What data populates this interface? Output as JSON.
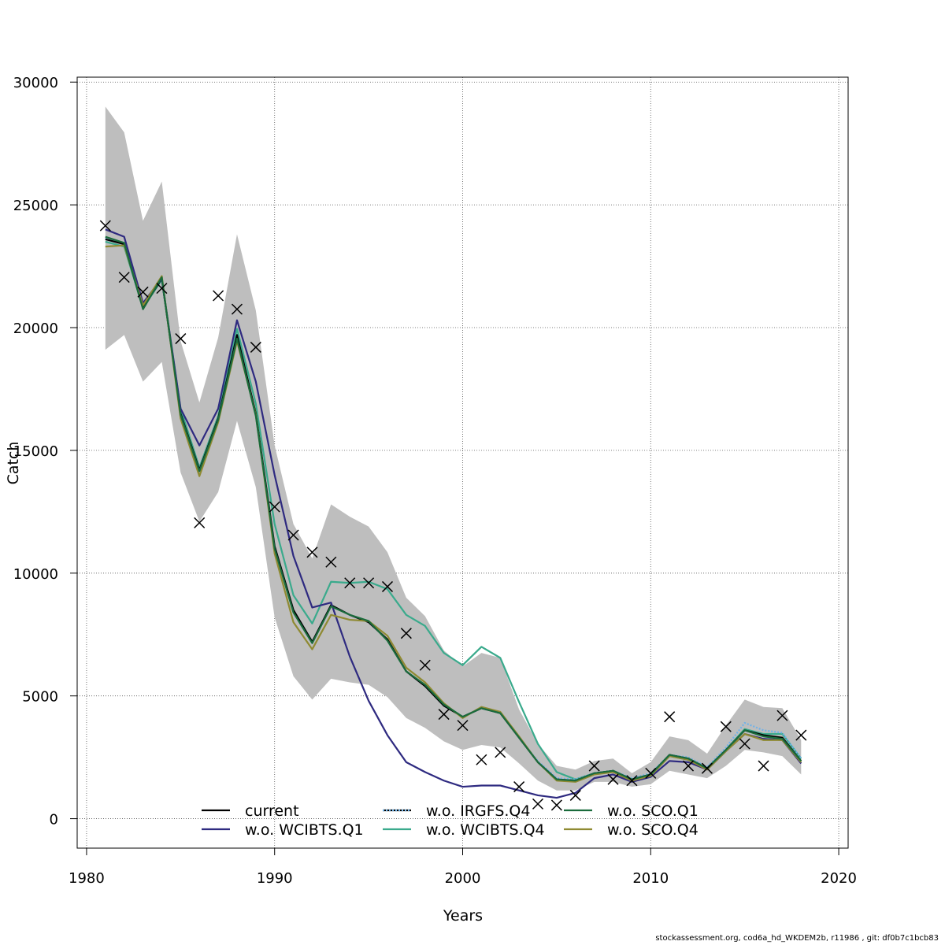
{
  "chart_data": {
    "type": "line",
    "xlabel": "Years",
    "ylabel": "Catch",
    "xlim": [
      1979.5,
      2020.5
    ],
    "ylim": [
      -1200,
      30200
    ],
    "x_ticks": [
      1980,
      1990,
      2000,
      2010,
      2020
    ],
    "y_ticks": [
      0,
      5000,
      10000,
      15000,
      20000,
      25000,
      30000
    ],
    "grid": true,
    "legend_position": "bottom-center",
    "x": [
      1981,
      1982,
      1983,
      1984,
      1985,
      1986,
      1987,
      1988,
      1989,
      1990,
      1991,
      1992,
      1993,
      1994,
      1995,
      1996,
      1997,
      1998,
      1999,
      2000,
      2001,
      2002,
      2003,
      2004,
      2005,
      2006,
      2007,
      2008,
      2009,
      2010,
      2011,
      2012,
      2013,
      2014,
      2015,
      2016,
      2017,
      2018
    ],
    "band": {
      "color": "#bebebe",
      "lower": [
        19100,
        19700,
        17800,
        18600,
        14100,
        12100,
        13300,
        16200,
        13500,
        8200,
        5800,
        4850,
        5700,
        5550,
        5450,
        4950,
        4100,
        3700,
        3150,
        2800,
        3000,
        2900,
        2250,
        1550,
        1150,
        1150,
        1500,
        1500,
        1300,
        1400,
        1950,
        1800,
        1650,
        2150,
        2800,
        2700,
        2550,
        1800
      ],
      "upper": [
        29000,
        27950,
        24350,
        25950,
        19450,
        16950,
        19600,
        23800,
        20700,
        15200,
        12000,
        10600,
        12800,
        12300,
        11900,
        10850,
        9000,
        8250,
        6850,
        6200,
        6750,
        6550,
        4450,
        3050,
        2150,
        2000,
        2350,
        2450,
        1850,
        2300,
        3350,
        3200,
        2650,
        3800,
        4850,
        4550,
        4500,
        3200
      ]
    },
    "series": [
      {
        "name": "current",
        "color": "#000000",
        "dash": "",
        "values": [
          23600,
          23400,
          20800,
          22000,
          16500,
          14200,
          16300,
          19700,
          16500,
          11100,
          8500,
          7200,
          8700,
          8300,
          8000,
          7300,
          6000,
          5400,
          4600,
          4150,
          4500,
          4300,
          3300,
          2300,
          1600,
          1550,
          1850,
          1950,
          1600,
          1800,
          2600,
          2450,
          2050,
          2800,
          3600,
          3400,
          3300,
          2350
        ]
      },
      {
        "name": "w.o. IRGFS.Q4",
        "color": "#6fb2e8",
        "dash": "2 2",
        "values": [
          23650,
          23400,
          20800,
          22000,
          16500,
          14200,
          16300,
          19700,
          16500,
          11100,
          8500,
          7200,
          8700,
          8300,
          8000,
          7300,
          6000,
          5400,
          4600,
          4150,
          4500,
          4300,
          3300,
          2350,
          1650,
          1600,
          1850,
          1950,
          1650,
          1850,
          2600,
          2500,
          2100,
          2900,
          3900,
          3600,
          3500,
          2450
        ]
      },
      {
        "name": "w.o. SCO.Q1",
        "color": "#1a6b3c",
        "dash": "",
        "values": [
          23700,
          23450,
          20750,
          22050,
          16450,
          14150,
          16250,
          19550,
          16400,
          11000,
          8400,
          7150,
          8650,
          8300,
          8050,
          7250,
          6000,
          5450,
          4650,
          4150,
          4500,
          4300,
          3300,
          2300,
          1600,
          1550,
          1850,
          1950,
          1600,
          1800,
          2600,
          2450,
          2050,
          2800,
          3600,
          3350,
          3250,
          2350
        ]
      },
      {
        "name": "w.o. WCIBTS.Q1",
        "color": "#2e2a80",
        "dash": "",
        "values": [
          24000,
          23700,
          21000,
          22000,
          16700,
          15200,
          16700,
          20300,
          17800,
          14000,
          10700,
          8600,
          8800,
          6600,
          4800,
          3400,
          2300,
          1900,
          1550,
          1300,
          1350,
          1350,
          1150,
          950,
          850,
          1050,
          1650,
          1800,
          1500,
          1700,
          2350,
          2300,
          2000,
          2750,
          3450,
          3250,
          3200,
          2250
        ]
      },
      {
        "name": "w.o. WCIBTS.Q4",
        "color": "#3aaa8c",
        "dash": "",
        "values": [
          23500,
          23300,
          20800,
          21950,
          16700,
          14300,
          16400,
          19950,
          16900,
          12000,
          9100,
          7950,
          9650,
          9600,
          9650,
          9350,
          8300,
          7850,
          6750,
          6250,
          7000,
          6550,
          4750,
          3050,
          1900,
          1600,
          1850,
          1950,
          1600,
          1800,
          2550,
          2400,
          2050,
          2800,
          3650,
          3450,
          3450,
          2450
        ]
      },
      {
        "name": "w.o. SCO.Q4",
        "color": "#8f8a32",
        "dash": "",
        "values": [
          23300,
          23350,
          20900,
          22100,
          16300,
          13950,
          16150,
          19450,
          16450,
          10800,
          8000,
          6900,
          8300,
          8100,
          8050,
          7450,
          6150,
          5550,
          4700,
          4100,
          4550,
          4350,
          3350,
          2300,
          1550,
          1500,
          1800,
          1900,
          1550,
          1750,
          2550,
          2400,
          2000,
          2750,
          3450,
          3200,
          3200,
          2300
        ]
      }
    ],
    "observations": {
      "marker": "x",
      "color": "#000000",
      "x": [
        1981,
        1982,
        1983,
        1984,
        1985,
        1986,
        1987,
        1988,
        1989,
        1990,
        1991,
        1992,
        1993,
        1994,
        1995,
        1996,
        1997,
        1998,
        1999,
        2000,
        2001,
        2002,
        2003,
        2004,
        2005,
        2006,
        2007,
        2008,
        2009,
        2010,
        2011,
        2012,
        2013,
        2014,
        2015,
        2016,
        2017,
        2018
      ],
      "values": [
        24150,
        22050,
        21450,
        21600,
        19550,
        12050,
        21300,
        20750,
        19200,
        12700,
        11550,
        10850,
        10450,
        9600,
        9600,
        9450,
        7550,
        6250,
        4250,
        3800,
        2400,
        2700,
        1300,
        600,
        550,
        950,
        2150,
        1600,
        1550,
        1850,
        4150,
        2150,
        2050,
        3750,
        3050,
        2150,
        4200,
        3400
      ]
    }
  },
  "legend": {
    "columns": [
      [
        "current",
        "w.o. WCIBTS.Q1"
      ],
      [
        "w.o. IRGFS.Q4",
        "w.o. WCIBTS.Q4"
      ],
      [
        "w.o. SCO.Q1",
        "w.o. SCO.Q4"
      ]
    ]
  },
  "footer": "stockassessment.org, cod6a_hd_WKDEM2b, r11986 , git: df0b7c1bcb83"
}
